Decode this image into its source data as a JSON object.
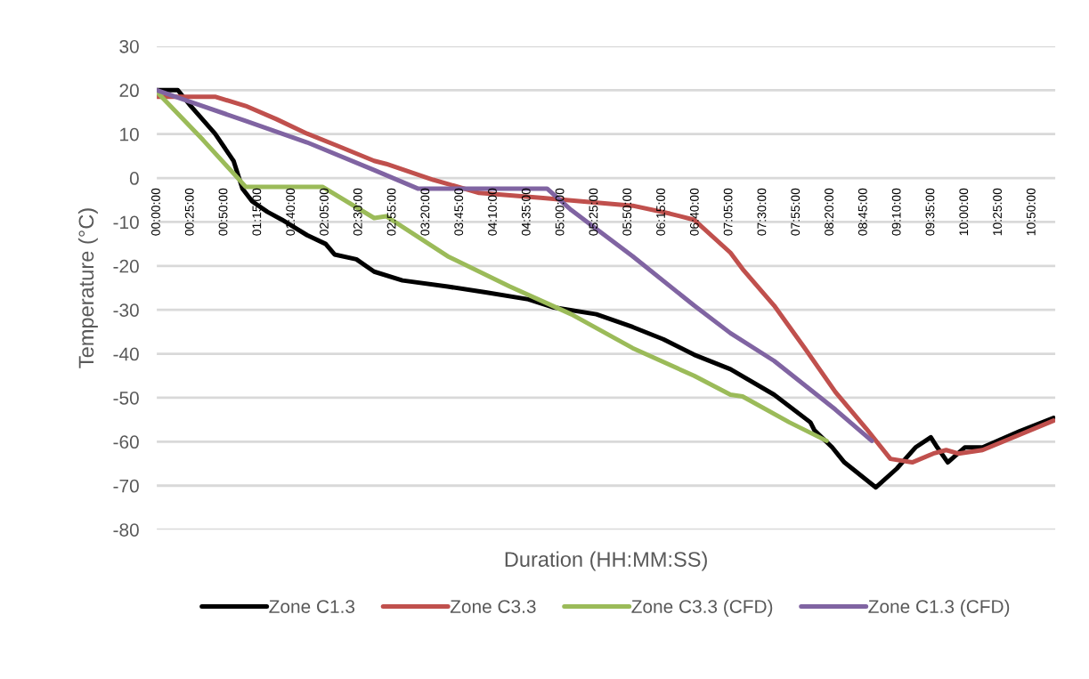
{
  "chart_data": {
    "type": "line",
    "xlabel": "Duration (HH:MM:SS)",
    "ylabel": "Temperature (°C)",
    "xlim": [
      0,
      11.12
    ],
    "ylim": [
      -80,
      30
    ],
    "yticks": [
      -80,
      -70,
      -60,
      -50,
      -40,
      -30,
      -20,
      -10,
      0,
      10,
      20,
      30
    ],
    "xticks": [
      {
        "value": 0,
        "label": "00:00:00"
      },
      {
        "value": 0.4167,
        "label": "00:25:00"
      },
      {
        "value": 0.8333,
        "label": "00:50:00"
      },
      {
        "value": 1.25,
        "label": "01:15:00"
      },
      {
        "value": 1.6667,
        "label": "01:40:00"
      },
      {
        "value": 2.0833,
        "label": "02:05:00"
      },
      {
        "value": 2.5,
        "label": "02:30:00"
      },
      {
        "value": 2.9167,
        "label": "02:55:00"
      },
      {
        "value": 3.3333,
        "label": "03:20:00"
      },
      {
        "value": 3.75,
        "label": "03:45:00"
      },
      {
        "value": 4.1667,
        "label": "04:10:00"
      },
      {
        "value": 4.5833,
        "label": "04:35:00"
      },
      {
        "value": 5,
        "label": "05:00:00"
      },
      {
        "value": 5.4167,
        "label": "05:25:00"
      },
      {
        "value": 5.8333,
        "label": "05:50:00"
      },
      {
        "value": 6.25,
        "label": "06:15:00"
      },
      {
        "value": 6.6667,
        "label": "06:40:00"
      },
      {
        "value": 7.0833,
        "label": "07:05:00"
      },
      {
        "value": 7.5,
        "label": "07:30:00"
      },
      {
        "value": 7.9167,
        "label": "07:55:00"
      },
      {
        "value": 8.3333,
        "label": "08:20:00"
      },
      {
        "value": 8.75,
        "label": "08:45:00"
      },
      {
        "value": 9.1667,
        "label": "09:10:00"
      },
      {
        "value": 9.5833,
        "label": "09:35:00"
      },
      {
        "value": 10,
        "label": "10:00:00"
      },
      {
        "value": 10.4167,
        "label": "10:25:00"
      },
      {
        "value": 10.8333,
        "label": "10:50:00"
      }
    ],
    "grid": "y",
    "legend": "bottom",
    "marker": "none",
    "line_style": "solid",
    "series": [
      {
        "name": "Zone C1.3",
        "color": "#000000",
        "x": [
          0,
          0.26,
          0.42,
          0.72,
          0.95,
          1.06,
          1.18,
          1.37,
          1.55,
          1.86,
          2.09,
          2.2,
          2.47,
          2.69,
          3.04,
          3.6,
          4.07,
          4.6,
          4.9,
          5.44,
          5.89,
          6.27,
          6.65,
          7.1,
          7.64,
          8.09,
          8.14,
          8.36,
          8.51,
          8.9,
          9.16,
          9.39,
          9.58,
          9.66,
          9.79,
          10.0,
          10.22,
          10.68,
          11.1
        ],
        "values": [
          20,
          20,
          16.4,
          10.1,
          3.9,
          -2.4,
          -5.3,
          -7.7,
          -9.5,
          -13,
          -15,
          -17.4,
          -18.5,
          -21.3,
          -23.3,
          -24.7,
          -26,
          -27.6,
          -29.4,
          -31,
          -33.9,
          -36.7,
          -40.2,
          -43.5,
          -49.3,
          -55.6,
          -57.4,
          -61.3,
          -64.7,
          -70.4,
          -66.1,
          -61.3,
          -59,
          -61.3,
          -64.7,
          -61.3,
          -61.3,
          -57.6,
          -54.6
        ]
      },
      {
        "name": "Zone C3.3",
        "color": "#c0504d",
        "x": [
          0,
          0.72,
          1.1,
          1.48,
          1.86,
          2.24,
          2.69,
          2.84,
          3.42,
          3.99,
          4.75,
          5.51,
          5.89,
          6.35,
          6.65,
          7.1,
          7.25,
          7.64,
          8.02,
          8.4,
          8.78,
          9.08,
          9.35,
          9.61,
          9.77,
          9.92,
          10.22,
          10.68,
          11.1
        ],
        "values": [
          18.5,
          18.5,
          16.4,
          13.4,
          10.1,
          7.3,
          3.9,
          3.2,
          -0.4,
          -3.4,
          -4.5,
          -5.7,
          -6.3,
          -8.1,
          -9.5,
          -17,
          -20.7,
          -29,
          -38.7,
          -48.7,
          -57,
          -63.9,
          -64.7,
          -62.7,
          -61.9,
          -62.7,
          -61.9,
          -58.4,
          -55.2
        ]
      },
      {
        "name": "Zone C3.3 (CFD)",
        "color": "#9bbb59",
        "x": [
          0,
          0.57,
          1.1,
          2.05,
          2.69,
          2.84,
          3.6,
          4.37,
          5.13,
          5.89,
          6.65,
          7.1,
          7.25,
          7.83,
          8.29
        ],
        "values": [
          19.6,
          8.7,
          -2,
          -2,
          -9.1,
          -8.7,
          -17.8,
          -24.7,
          -31,
          -38.7,
          -45,
          -49.3,
          -49.7,
          -55.6,
          -59.8
        ]
      },
      {
        "name": "Zone C1.3 (CFD)",
        "color": "#8064a2",
        "x": [
          0,
          0.34,
          1.1,
          1.86,
          2.69,
          3.23,
          4.83,
          5.13,
          5.89,
          6.65,
          7.1,
          7.64,
          8.4,
          8.85
        ],
        "values": [
          20,
          17.8,
          13,
          8.1,
          1.8,
          -2.4,
          -2.4,
          -7.3,
          -17.8,
          -29,
          -35.3,
          -41.6,
          -52.7,
          -59.8
        ]
      }
    ]
  }
}
